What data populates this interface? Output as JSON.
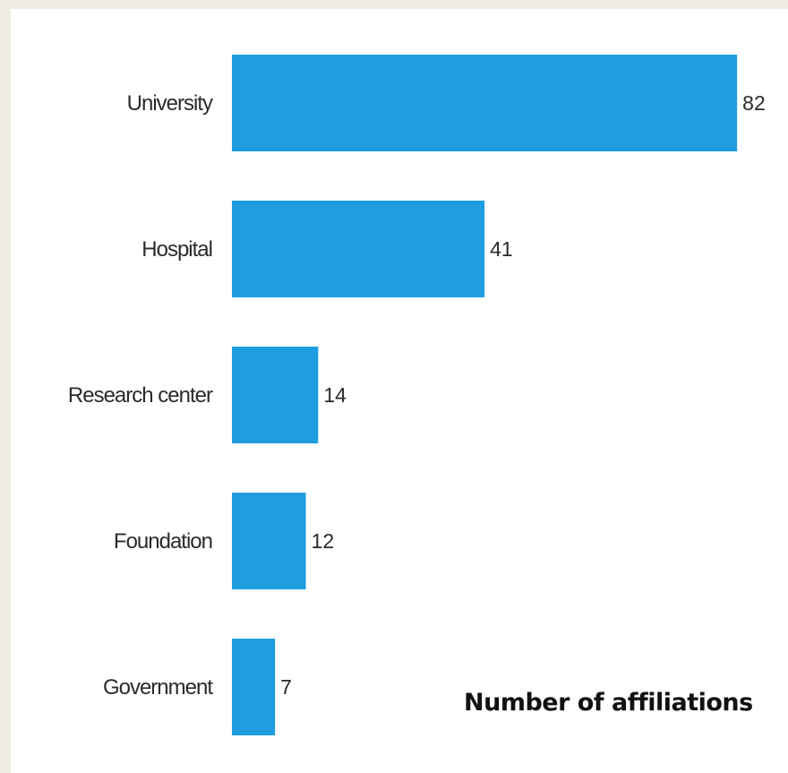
{
  "chart_data": {
    "type": "bar",
    "orientation": "horizontal",
    "categories": [
      "University",
      "Hospital",
      "Research center",
      "Foundation",
      "Government"
    ],
    "values": [
      82,
      41,
      14,
      12,
      7
    ],
    "annotation": "Number of affiliations",
    "xlim": [
      0,
      82
    ],
    "grid": false,
    "legend": "none"
  },
  "colors": {
    "bar": "#1f9de0",
    "page_background": "#efece2",
    "plot_background": "#ffffff"
  }
}
